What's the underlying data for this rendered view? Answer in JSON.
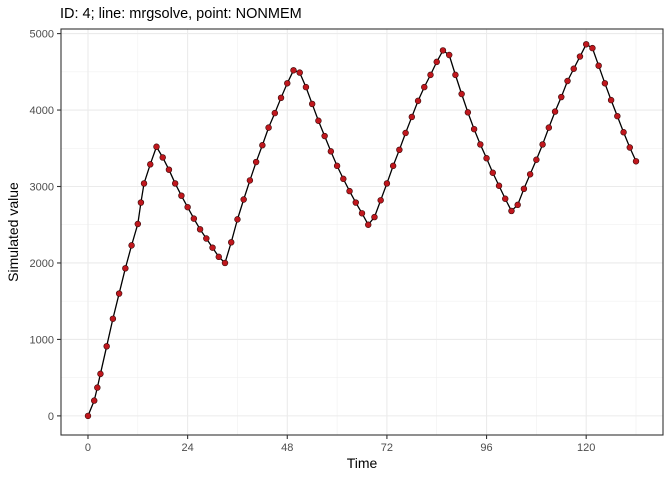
{
  "chart_data": {
    "type": "line",
    "title": "ID: 4; line: mrgsolve, point: NONMEM",
    "xlabel": "Time",
    "ylabel": "Simulated value",
    "xlim": [
      -6.5,
      138.5
    ],
    "ylim": [
      -250,
      5060
    ],
    "x_ticks": [
      0,
      24,
      48,
      72,
      96,
      120
    ],
    "y_ticks": [
      0,
      1000,
      2000,
      3000,
      4000,
      5000
    ],
    "grid": true,
    "legend": "none",
    "series": [
      {
        "kind": "line",
        "color": "#000000",
        "x": [
          0,
          1.5,
          2.25,
          3,
          4.5,
          6,
          7.5,
          9,
          10.5,
          12,
          12.75,
          13.5,
          15,
          16.5,
          18,
          19.5,
          21,
          22.5,
          24,
          25.5,
          27,
          28.5,
          30,
          31.5,
          33,
          34.5,
          36,
          37.5,
          39,
          40.5,
          42,
          43.5,
          45,
          46.5,
          48,
          49.5,
          51,
          52.5,
          54,
          55.5,
          57,
          58.5,
          60,
          61.5,
          63,
          64.5,
          66,
          67.5,
          69,
          70.5,
          72,
          73.5,
          75,
          76.5,
          78,
          79.5,
          81,
          82.5,
          84,
          85.5,
          87,
          88.5,
          90,
          91.5,
          93,
          94.5,
          96,
          97.5,
          99,
          100.5,
          102,
          103.5,
          105,
          106.5,
          108,
          109.5,
          111,
          112.5,
          114,
          115.5,
          117,
          118.5,
          120,
          121.5,
          123,
          124.5,
          126,
          127.5,
          129,
          130.5,
          132
        ],
        "y": [
          0,
          200,
          370,
          550,
          910,
          1270,
          1600,
          1930,
          2230,
          2510,
          2790,
          3040,
          3290,
          3520,
          3380,
          3220,
          3040,
          2880,
          2730,
          2580,
          2440,
          2320,
          2200,
          2080,
          2000,
          2270,
          2570,
          2830,
          3080,
          3320,
          3540,
          3770,
          3960,
          4160,
          4350,
          4520,
          4490,
          4300,
          4080,
          3860,
          3660,
          3460,
          3270,
          3100,
          2940,
          2790,
          2650,
          2500,
          2600,
          2820,
          3040,
          3270,
          3480,
          3700,
          3910,
          4120,
          4300,
          4460,
          4630,
          4780,
          4720,
          4460,
          4210,
          3970,
          3750,
          3550,
          3370,
          3180,
          3010,
          2840,
          2680,
          2760,
          2970,
          3160,
          3350,
          3550,
          3770,
          3980,
          4170,
          4380,
          4540,
          4700,
          4860,
          4810,
          4580,
          4350,
          4130,
          3920,
          3710,
          3510,
          3330
        ]
      },
      {
        "kind": "points",
        "color": "#c0171d",
        "x": [
          0,
          1.5,
          2.25,
          3,
          4.5,
          6,
          7.5,
          9,
          10.5,
          12,
          12.75,
          13.5,
          15,
          16.5,
          18,
          19.5,
          21,
          22.5,
          24,
          25.5,
          27,
          28.5,
          30,
          31.5,
          33,
          34.5,
          36,
          37.5,
          39,
          40.5,
          42,
          43.5,
          45,
          46.5,
          48,
          49.5,
          51,
          52.5,
          54,
          55.5,
          57,
          58.5,
          60,
          61.5,
          63,
          64.5,
          66,
          67.5,
          69,
          70.5,
          72,
          73.5,
          75,
          76.5,
          78,
          79.5,
          81,
          82.5,
          84,
          85.5,
          87,
          88.5,
          90,
          91.5,
          93,
          94.5,
          96,
          97.5,
          99,
          100.5,
          102,
          103.5,
          105,
          106.5,
          108,
          109.5,
          111,
          112.5,
          114,
          115.5,
          117,
          118.5,
          120,
          121.5,
          123,
          124.5,
          126,
          127.5,
          129,
          130.5,
          132
        ],
        "y": [
          0,
          200,
          370,
          550,
          910,
          1270,
          1600,
          1930,
          2230,
          2510,
          2790,
          3040,
          3290,
          3520,
          3380,
          3220,
          3040,
          2880,
          2730,
          2580,
          2440,
          2320,
          2200,
          2080,
          2000,
          2270,
          2570,
          2830,
          3080,
          3320,
          3540,
          3770,
          3960,
          4160,
          4350,
          4520,
          4490,
          4300,
          4080,
          3860,
          3660,
          3460,
          3270,
          3100,
          2940,
          2790,
          2650,
          2500,
          2600,
          2820,
          3040,
          3270,
          3480,
          3700,
          3910,
          4120,
          4300,
          4460,
          4630,
          4780,
          4720,
          4460,
          4210,
          3970,
          3750,
          3550,
          3370,
          3180,
          3010,
          2840,
          2680,
          2760,
          2970,
          3160,
          3350,
          3550,
          3770,
          3980,
          4170,
          4380,
          4540,
          4700,
          4860,
          4810,
          4580,
          4350,
          4130,
          3920,
          3710,
          3510,
          3330
        ]
      }
    ]
  }
}
